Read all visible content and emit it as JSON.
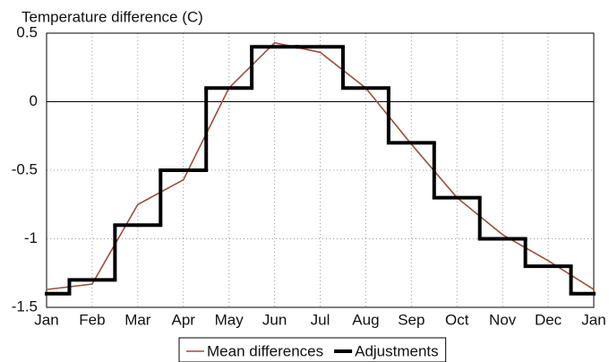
{
  "chart_data": {
    "type": "line",
    "y_label": "Temperature difference (C)",
    "categories": [
      "Jan",
      "Feb",
      "Mar",
      "Apr",
      "May",
      "Jun",
      "Jul",
      "Aug",
      "Sep",
      "Oct",
      "Nov",
      "Dec",
      "Jan"
    ],
    "series": [
      {
        "name": "Mean differences",
        "color": "#9c4f3a",
        "style": "line",
        "values": [
          -1.37,
          -1.33,
          -0.75,
          -0.57,
          0.1,
          0.43,
          0.36,
          0.1,
          -0.31,
          -0.7,
          -0.97,
          -1.16,
          -1.37
        ]
      },
      {
        "name": "Adjustments",
        "color": "#000000",
        "style": "step",
        "values": [
          -1.4,
          -1.3,
          -0.9,
          -0.5,
          0.1,
          0.4,
          0.4,
          0.1,
          -0.3,
          -0.7,
          -1.0,
          -1.2,
          -1.4
        ]
      }
    ],
    "ylim": [
      -1.5,
      0.5
    ],
    "yticks": [
      0.5,
      0,
      -0.5,
      -1,
      -1.5
    ],
    "grid": true,
    "legend": "bottom"
  }
}
